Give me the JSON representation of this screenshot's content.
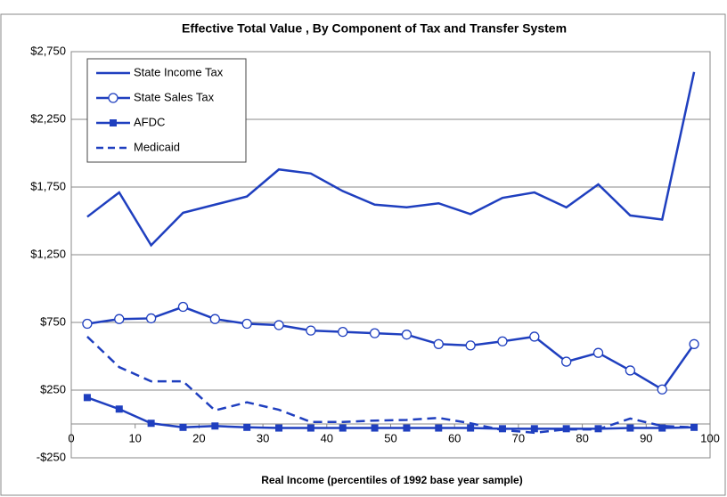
{
  "chart_data": {
    "type": "line",
    "title": "Effective Total Value , By Component of Tax and Transfer System",
    "x_label": "Real Income (percentiles of 1992 base year sample)",
    "x": [
      2.5,
      7.5,
      12.5,
      17.5,
      22.5,
      27.5,
      32.5,
      37.5,
      42.5,
      47.5,
      52.5,
      57.5,
      62.5,
      67.5,
      72.5,
      77.5,
      82.5,
      87.5,
      92.5,
      97.5
    ],
    "xlim": [
      0,
      100
    ],
    "xticks": [
      0,
      10,
      20,
      30,
      40,
      50,
      60,
      70,
      80,
      90,
      100
    ],
    "ylim": [
      -250,
      2750
    ],
    "yticks": [
      {
        "value": -250,
        "label": "-$250"
      },
      {
        "value": 250,
        "label": "$250"
      },
      {
        "value": 750,
        "label": "$750"
      },
      {
        "value": 1250,
        "label": "$1,250"
      },
      {
        "value": 1750,
        "label": "$1,750"
      },
      {
        "value": 2250,
        "label": "$2,250"
      },
      {
        "value": 2750,
        "label": "$2,750"
      }
    ],
    "grid": true,
    "legend": "upper left",
    "series": [
      {
        "name": "State Income Tax",
        "color": "#1f3fbf",
        "marker": "none",
        "dash": "solid",
        "values": [
          1530,
          1710,
          1320,
          1560,
          1620,
          1680,
          1880,
          1850,
          1720,
          1620,
          1600,
          1630,
          1550,
          1670,
          1710,
          1600,
          1770,
          1540,
          1510,
          2600
        ]
      },
      {
        "name": "State Sales Tax",
        "color": "#1f3fbf",
        "marker": "circle",
        "dash": "solid",
        "values": [
          740,
          775,
          780,
          865,
          775,
          740,
          730,
          690,
          680,
          670,
          660,
          590,
          580,
          610,
          645,
          460,
          525,
          395,
          255,
          590
        ]
      },
      {
        "name": "AFDC",
        "color": "#1f3fbf",
        "marker": "square",
        "dash": "solid",
        "values": [
          195,
          110,
          5,
          -25,
          -15,
          -25,
          -30,
          -30,
          -30,
          -30,
          -30,
          -30,
          -30,
          -35,
          -35,
          -35,
          -35,
          -30,
          -30,
          -25
        ]
      },
      {
        "name": "Medicaid",
        "color": "#1f3fbf",
        "marker": "none",
        "dash": "dashed",
        "values": [
          645,
          420,
          315,
          315,
          100,
          160,
          105,
          15,
          15,
          25,
          30,
          45,
          5,
          -45,
          -65,
          -40,
          -40,
          40,
          -15,
          -25
        ]
      }
    ]
  }
}
